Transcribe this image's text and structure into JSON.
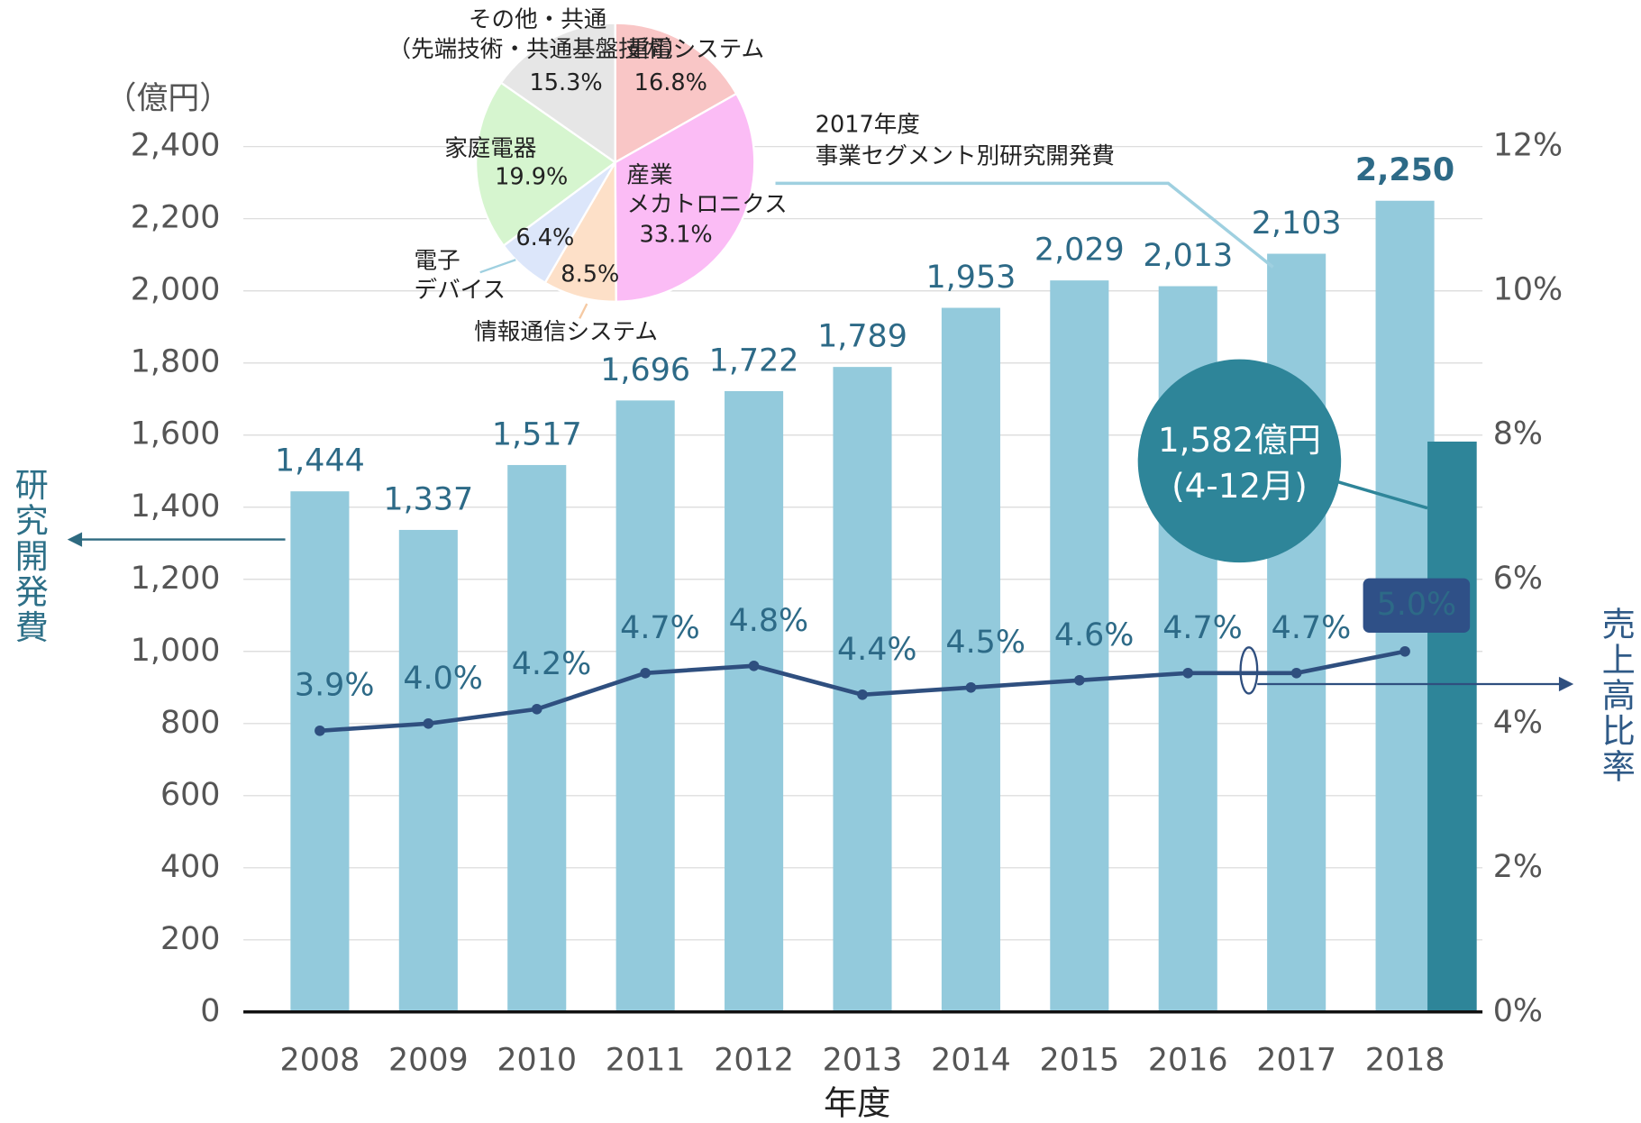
{
  "chart_data": [
    {
      "type": "bar",
      "ylabel": "（億円）",
      "y_axis_title": "研究開発費",
      "y2_axis_title": "売上高比率",
      "xlabel": "年度",
      "categories": [
        "2008",
        "2009",
        "2010",
        "2011",
        "2012",
        "2013",
        "2014",
        "2015",
        "2016",
        "2017",
        "2018"
      ],
      "series": [
        {
          "color": "#93cadc",
          "values": [
            1444,
            1337,
            1517,
            1696,
            1722,
            1789,
            1953,
            2029,
            2013,
            2103,
            2250
          ],
          "value_labels": [
            "1,444",
            "1,337",
            "1,517",
            "1,696",
            "1,722",
            "1,789",
            "1,953",
            "2,029",
            "2,013",
            "2,103",
            "2,250"
          ]
        },
        {
          "color": "#2e8599",
          "values": [
            null,
            null,
            null,
            null,
            null,
            null,
            null,
            null,
            null,
            null,
            1582
          ],
          "value_labels": [
            null,
            null,
            null,
            null,
            null,
            null,
            null,
            null,
            null,
            null,
            "1,582億円"
          ],
          "annotation": "(4-12月)"
        },
        {
          "type": "line",
          "axis": "y2",
          "color": "#2f4f7f",
          "values": [
            3.9,
            4.0,
            4.2,
            4.7,
            4.8,
            4.4,
            4.5,
            4.6,
            4.7,
            4.7,
            5.0
          ],
          "value_labels": [
            "3.9%",
            "4.0%",
            "4.2%",
            "4.7%",
            "4.8%",
            "4.4%",
            "4.5%",
            "4.6%",
            "4.7%",
            "4.7%",
            "5.0%"
          ]
        }
      ],
      "ylim": [
        0,
        2400
      ],
      "yticks": [
        0,
        200,
        400,
        600,
        800,
        {
          "value": 1000,
          "label": "1,000"
        },
        {
          "value": 1200,
          "label": "1,200"
        },
        {
          "value": 1400,
          "label": "1,400"
        },
        {
          "value": 1600,
          "label": "1,600"
        },
        {
          "value": 1800,
          "label": "1,800"
        },
        {
          "value": 2000,
          "label": "2,000"
        },
        {
          "value": 2200,
          "label": "2,200"
        },
        {
          "value": 2400,
          "label": "2,400"
        }
      ],
      "y2lim": [
        0,
        12
      ],
      "y2ticks": [
        {
          "value": 0,
          "label": "0%"
        },
        {
          "value": 2,
          "label": "2%"
        },
        {
          "value": 4,
          "label": "4%"
        },
        {
          "value": 6,
          "label": "6%"
        },
        {
          "value": 8,
          "label": "8%"
        },
        {
          "value": 10,
          "label": "10%"
        },
        {
          "value": 12,
          "label": "12%"
        }
      ],
      "grid": true
    },
    {
      "type": "pie",
      "title": "2017年度\n事業セグメント別研究開発費",
      "categories": [
        "重電システム",
        "産業\nメカトロニクス",
        "情報通信システム",
        "電子\nデバイス",
        "家庭電器",
        "その他・共通\n（先端技術・共通基盤技術）"
      ],
      "values": [
        16.8,
        33.1,
        8.5,
        6.4,
        19.9,
        15.3
      ],
      "value_labels": [
        "16.8%",
        "33.1%",
        "8.5%",
        "6.4%",
        "19.9%",
        "15.3%"
      ],
      "colors": [
        "#f9c6c6",
        "#fbbcf5",
        "#fde0c8",
        "#dce6fa",
        "#d6f5cf",
        "#e6e6e6"
      ]
    }
  ]
}
